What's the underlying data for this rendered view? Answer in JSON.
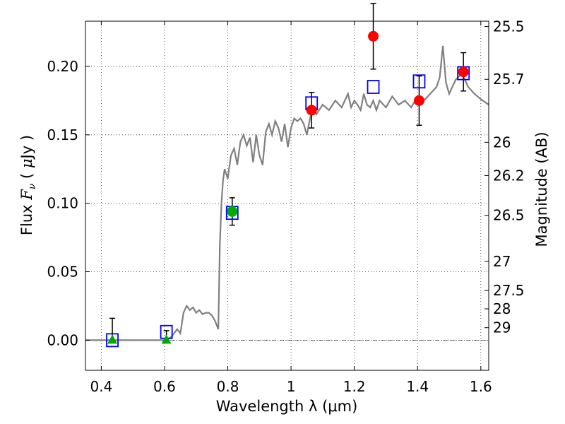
{
  "chart_data": {
    "type": "scatter",
    "title": "",
    "xlabel": "Wavelength  λ (μm)",
    "ylabel_parts": [
      "Flux  ",
      "F",
      "ν",
      "  ( ",
      "μ",
      "Jy )"
    ],
    "y2label": "Magnitude (AB)",
    "xlim": [
      0.35,
      1.625
    ],
    "ylim": [
      -0.022,
      0.233
    ],
    "grid": true,
    "x_ticks": [
      0.4,
      0.6,
      0.8,
      1.0,
      1.2,
      1.4,
      1.6
    ],
    "x_tick_labels": [
      "0.4",
      "0.6",
      "0.8",
      "1",
      "1.2",
      "1.4",
      "1.6"
    ],
    "y_ticks": [
      0.0,
      0.05,
      0.1,
      0.15,
      0.2
    ],
    "y_tick_labels": [
      "0.00",
      "0.05",
      "0.10",
      "0.15",
      "0.20"
    ],
    "y2_ticks": [
      25.5,
      25.7,
      26,
      26.2,
      26.5,
      27,
      27.5,
      28,
      29
    ],
    "y2_tick_labels": [
      "25.5",
      "25.7",
      "26",
      "26.2",
      "26.5",
      "27",
      "27.5",
      "28",
      "29"
    ],
    "zero_line": 0.0,
    "model_spectrum": {
      "color": "#808080",
      "x": [
        0.35,
        0.6,
        0.62,
        0.64,
        0.65,
        0.66,
        0.67,
        0.68,
        0.69,
        0.7,
        0.71,
        0.72,
        0.73,
        0.74,
        0.75,
        0.76,
        0.77,
        0.775,
        0.78,
        0.785,
        0.79,
        0.8,
        0.81,
        0.82,
        0.83,
        0.84,
        0.85,
        0.86,
        0.87,
        0.88,
        0.89,
        0.9,
        0.91,
        0.92,
        0.93,
        0.94,
        0.95,
        0.96,
        0.97,
        0.98,
        0.99,
        1.0,
        1.01,
        1.02,
        1.03,
        1.04,
        1.05,
        1.06,
        1.07,
        1.08,
        1.1,
        1.12,
        1.14,
        1.16,
        1.18,
        1.19,
        1.2,
        1.21,
        1.22,
        1.23,
        1.24,
        1.25,
        1.26,
        1.27,
        1.28,
        1.3,
        1.32,
        1.34,
        1.36,
        1.38,
        1.4,
        1.42,
        1.44,
        1.46,
        1.47,
        1.48,
        1.49,
        1.5,
        1.52,
        1.54,
        1.56,
        1.58,
        1.6,
        1.625
      ],
      "y": [
        0.0,
        0.0,
        0.002,
        0.008,
        0.005,
        0.02,
        0.025,
        0.022,
        0.024,
        0.02,
        0.022,
        0.019,
        0.02,
        0.02,
        0.018,
        0.014,
        0.008,
        0.07,
        0.1,
        0.117,
        0.125,
        0.118,
        0.135,
        0.14,
        0.128,
        0.145,
        0.15,
        0.142,
        0.148,
        0.13,
        0.15,
        0.135,
        0.128,
        0.152,
        0.158,
        0.15,
        0.16,
        0.155,
        0.145,
        0.158,
        0.141,
        0.155,
        0.162,
        0.16,
        0.162,
        0.158,
        0.15,
        0.162,
        0.17,
        0.165,
        0.172,
        0.168,
        0.175,
        0.17,
        0.18,
        0.17,
        0.175,
        0.172,
        0.168,
        0.18,
        0.172,
        0.17,
        0.175,
        0.168,
        0.175,
        0.17,
        0.178,
        0.172,
        0.175,
        0.17,
        0.178,
        0.175,
        0.18,
        0.185,
        0.192,
        0.215,
        0.188,
        0.18,
        0.19,
        0.195,
        0.185,
        0.18,
        0.176,
        0.172
      ]
    },
    "series": [
      {
        "marker": "square",
        "color": "#0000ff",
        "x": [
          0.435,
          0.606,
          0.814,
          1.065,
          1.26,
          1.405,
          1.545
        ],
        "y": [
          0.0,
          0.006,
          0.093,
          0.173,
          0.185,
          0.189,
          0.195
        ]
      },
      {
        "marker": "circle",
        "color": "#ff0000",
        "x": [
          1.065,
          1.26,
          1.405,
          1.545
        ],
        "y": [
          0.168,
          0.222,
          0.175,
          0.196
        ],
        "err": [
          0.013,
          0.024,
          0.018,
          0.014
        ]
      },
      {
        "marker": "circle",
        "color": "#00aa00",
        "x": [
          0.814
        ],
        "y": [
          0.094
        ],
        "err": [
          0.01
        ]
      },
      {
        "marker": "triangle",
        "color": "#00aa00",
        "x": [
          0.435,
          0.606
        ],
        "y": [
          0.0,
          0.0
        ],
        "err_up": [
          0.016,
          0.007
        ],
        "err_down": [
          0.0,
          0.0
        ]
      }
    ]
  }
}
